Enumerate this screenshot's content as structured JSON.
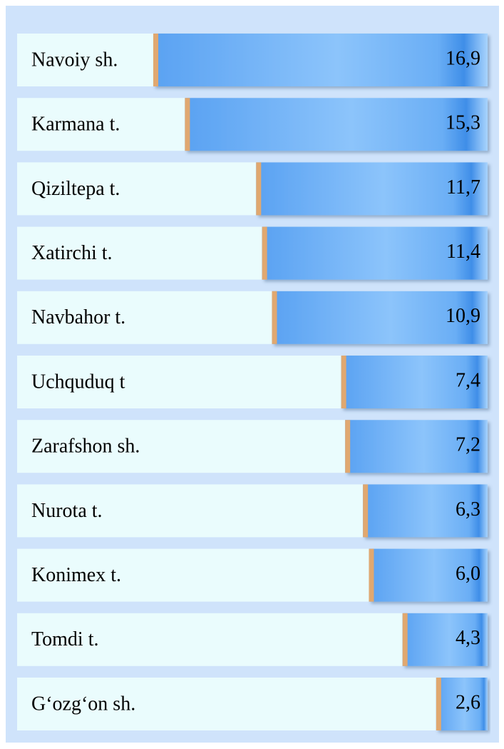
{
  "chart_data": {
    "type": "bar",
    "orientation": "horizontal",
    "categories": [
      "Navoiy sh.",
      "Karmana t.",
      "Qiziltepa t.",
      "Xatirchi t.",
      "Navbahor t.",
      "Uchquduq t",
      "Zarafshon sh.",
      "Nurota t.",
      "Konimex t.",
      "Tomdi t.",
      "G‘ozg‘on sh."
    ],
    "values": [
      16.9,
      15.3,
      11.7,
      11.4,
      10.9,
      7.4,
      7.2,
      6.3,
      6.0,
      4.3,
      2.6
    ],
    "value_labels": [
      "16,9",
      "15,3",
      "11,7",
      "11,4",
      "10,9",
      "7,4",
      "7,2",
      "6,3",
      "6,0",
      "4,3",
      "2,6"
    ],
    "color": "#6aaef5"
  }
}
